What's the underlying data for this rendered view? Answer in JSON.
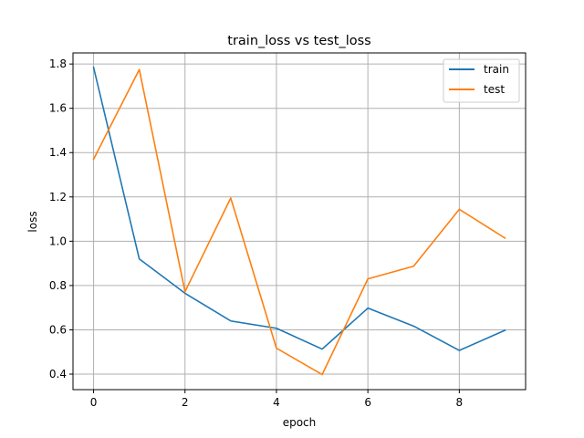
{
  "chart_data": {
    "type": "line",
    "title": "train_loss vs test_loss",
    "xlabel": "epoch",
    "ylabel": "loss",
    "x": [
      0,
      1,
      2,
      3,
      4,
      5,
      6,
      7,
      8,
      9
    ],
    "xlim": [
      -0.45,
      9.45
    ],
    "ylim": [
      0.33,
      1.85
    ],
    "xticks": [
      0,
      2,
      4,
      6,
      8
    ],
    "xtick_labels": [
      "0",
      "2",
      "4",
      "6",
      "8"
    ],
    "yticks": [
      0.4,
      0.6,
      0.8,
      1.0,
      1.2,
      1.4,
      1.6,
      1.8
    ],
    "ytick_labels": [
      "0.4",
      "0.6",
      "0.8",
      "1.0",
      "1.2",
      "1.4",
      "1.6",
      "1.8"
    ],
    "grid": true,
    "legend_position": "top-right",
    "series": [
      {
        "name": "train",
        "color": "#1f77b4",
        "values": [
          1.785,
          0.92,
          0.765,
          0.64,
          0.607,
          0.513,
          0.698,
          0.617,
          0.507,
          0.598
        ]
      },
      {
        "name": "test",
        "color": "#ff7f0e",
        "values": [
          1.37,
          1.775,
          0.772,
          1.195,
          0.517,
          0.398,
          0.83,
          0.887,
          1.144,
          1.014
        ]
      }
    ]
  }
}
